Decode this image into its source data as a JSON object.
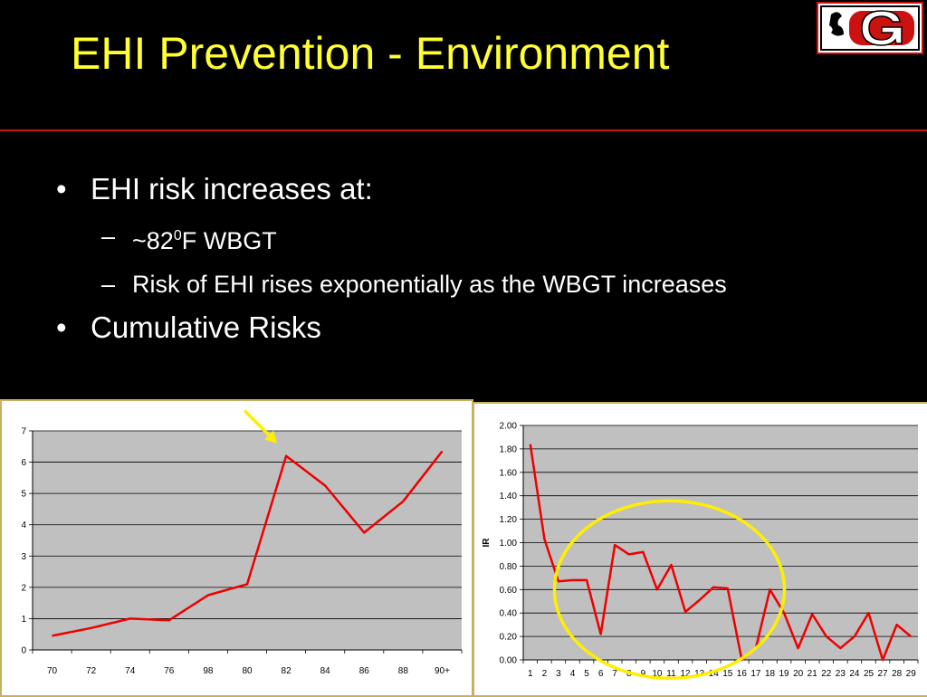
{
  "slide": {
    "title": "EHI Prevention - Environment",
    "bullets": [
      {
        "text": "EHI risk increases at:"
      },
      {
        "text": "Cumulative Risks"
      }
    ],
    "sub_bullets": [
      {
        "prefix": "~82",
        "sup": "0",
        "suffix": "F WBGT"
      },
      {
        "text": "Risk of EHI rises exponentially as the WBGT increases"
      }
    ],
    "bullet_mark": "•",
    "dash_mark": "–",
    "colors": {
      "title": "#ffff33",
      "accent_rule": "#cc1111",
      "series": "#ee0000",
      "annotation": "#ffee00"
    }
  },
  "chart_data": [
    {
      "type": "line",
      "categories": [
        "70",
        "72",
        "74",
        "76",
        "98",
        "80",
        "82",
        "84",
        "86",
        "88",
        "90+"
      ],
      "values": [
        0.45,
        0.7,
        1.0,
        0.95,
        1.75,
        2.1,
        6.2,
        5.25,
        3.75,
        4.75,
        6.35
      ],
      "ylim": [
        0,
        7
      ],
      "yticks": [
        "0",
        "1",
        "2",
        "3",
        "4",
        "5",
        "6",
        "7"
      ],
      "ylabel": "",
      "xlabel": "",
      "grid": true,
      "annotation": {
        "type": "arrow",
        "points_to_category": "82"
      }
    },
    {
      "type": "line",
      "categories": [
        "1",
        "2",
        "3",
        "4",
        "5",
        "6",
        "7",
        "8",
        "9",
        "10",
        "11",
        "12",
        "13",
        "14",
        "15",
        "16",
        "17",
        "18",
        "19",
        "20",
        "21",
        "22",
        "23",
        "24",
        "25",
        "27",
        "28",
        "29"
      ],
      "values": [
        1.84,
        1.03,
        0.67,
        0.68,
        0.68,
        0.22,
        0.98,
        0.9,
        0.92,
        0.6,
        0.81,
        0.41,
        0.51,
        0.62,
        0.61,
        0.0,
        0.1,
        0.6,
        0.4,
        0.1,
        0.39,
        0.2,
        0.1,
        0.2,
        0.4,
        0.0,
        0.3,
        0.2
      ],
      "ylim": [
        0,
        2
      ],
      "yticks": [
        "0.00",
        "0.20",
        "0.40",
        "0.60",
        "0.80",
        "1.00",
        "1.20",
        "1.40",
        "1.60",
        "1.80",
        "2.00"
      ],
      "ylabel": "IR",
      "xlabel": "",
      "grid": true,
      "annotation": {
        "type": "circle",
        "categories_spanned": [
          "4",
          "18"
        ]
      }
    }
  ]
}
